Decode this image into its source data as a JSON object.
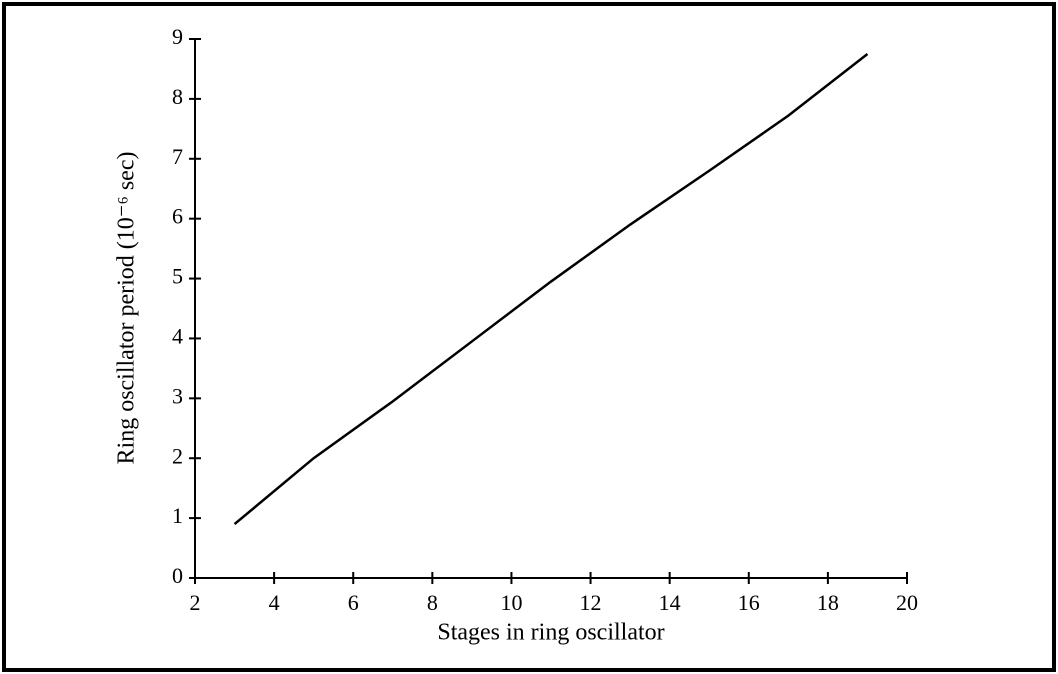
{
  "chart_data": {
    "type": "line",
    "x_label": "Stages in ring oscillator",
    "y_label": "Ring oscillator period (10⁻⁶ sec)",
    "x": [
      3,
      5,
      7,
      9,
      11,
      13,
      15,
      17,
      19
    ],
    "series": [
      {
        "color": "#000000",
        "values": [
          0.9,
          2.0,
          2.95,
          3.95,
          4.95,
          5.9,
          6.8,
          7.72,
          8.75
        ]
      }
    ],
    "xlim": [
      2,
      20
    ],
    "xticks": [
      2,
      4,
      6,
      8,
      10,
      12,
      14,
      16,
      18,
      20
    ],
    "ylim": [
      0,
      9
    ],
    "yticks": [
      0,
      1,
      2,
      3,
      4,
      5,
      6,
      7,
      8,
      9
    ],
    "grid": false
  }
}
